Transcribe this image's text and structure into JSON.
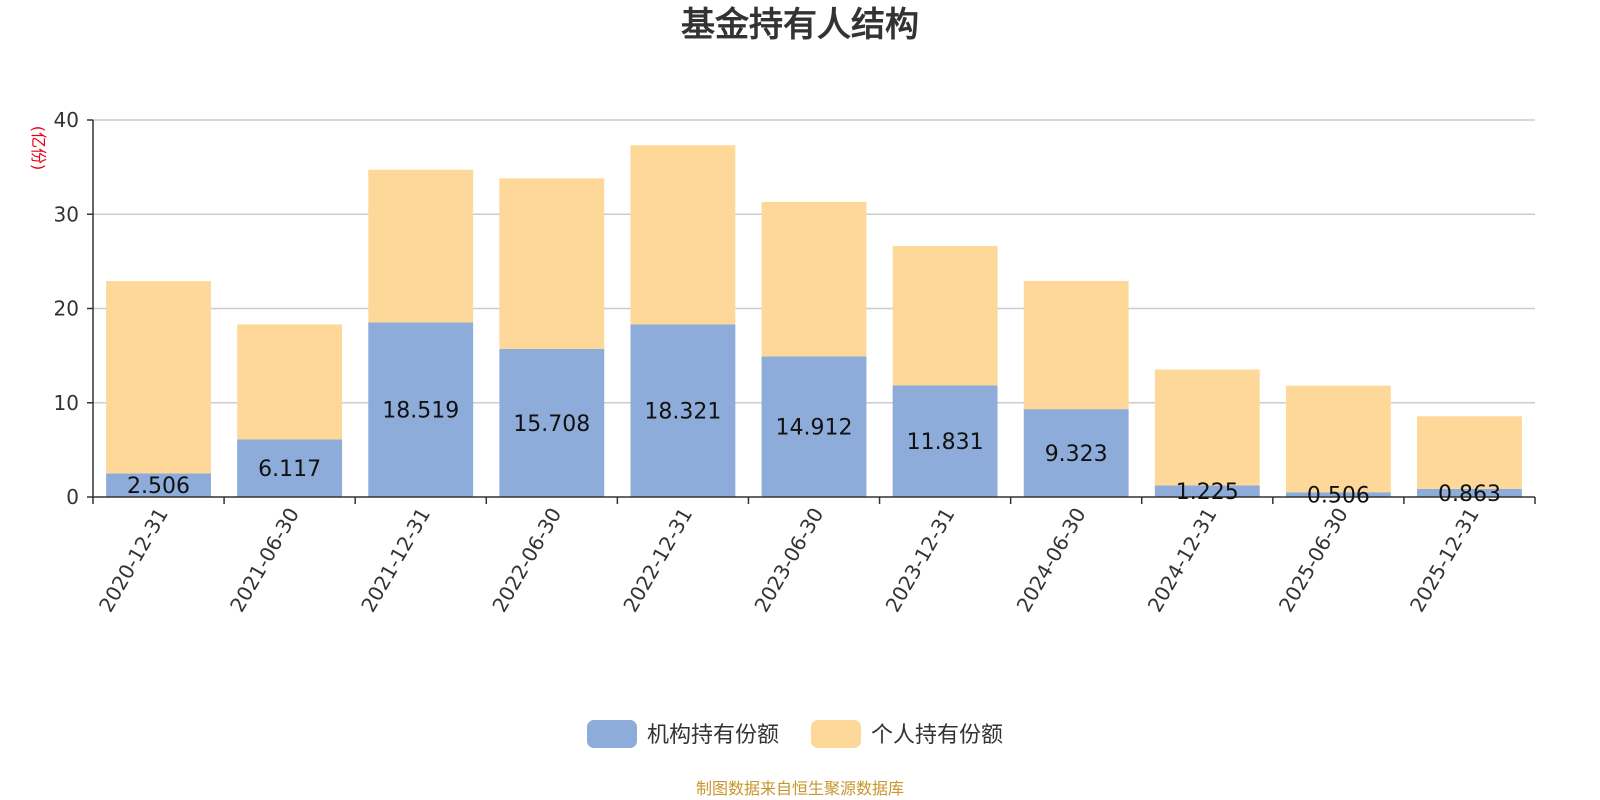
{
  "chart_data": {
    "type": "bar",
    "stacked": true,
    "title": "基金持有人结构",
    "unit_label": "(亿份)",
    "ylim": [
      0,
      40
    ],
    "yticks": [
      0,
      10,
      20,
      30,
      40
    ],
    "grid": true,
    "legend_position": "bottom",
    "categories": [
      "2020-12-31",
      "2021-06-30",
      "2021-12-31",
      "2022-06-30",
      "2022-12-31",
      "2023-06-30",
      "2023-12-31",
      "2024-06-30",
      "2024-12-31",
      "2025-06-30",
      "2025-12-31"
    ],
    "series": [
      {
        "name": "机构持有份额",
        "color": "#8eacd9",
        "values": [
          2.506,
          6.117,
          18.519,
          15.708,
          18.321,
          14.912,
          11.831,
          9.323,
          1.225,
          0.506,
          0.863
        ],
        "labels": [
          "2.506",
          "6.117",
          "18.519",
          "15.708",
          "18.321",
          "14.912",
          "11.831",
          "9.323",
          "1.225",
          "0.506",
          "0.863"
        ]
      },
      {
        "name": "个人持有份额",
        "color": "#fed899",
        "values": [
          20.4,
          12.2,
          16.2,
          18.1,
          19.0,
          16.4,
          14.8,
          13.6,
          12.3,
          11.3,
          7.7
        ]
      }
    ]
  },
  "source": "制图数据来自恒生聚源数据库"
}
